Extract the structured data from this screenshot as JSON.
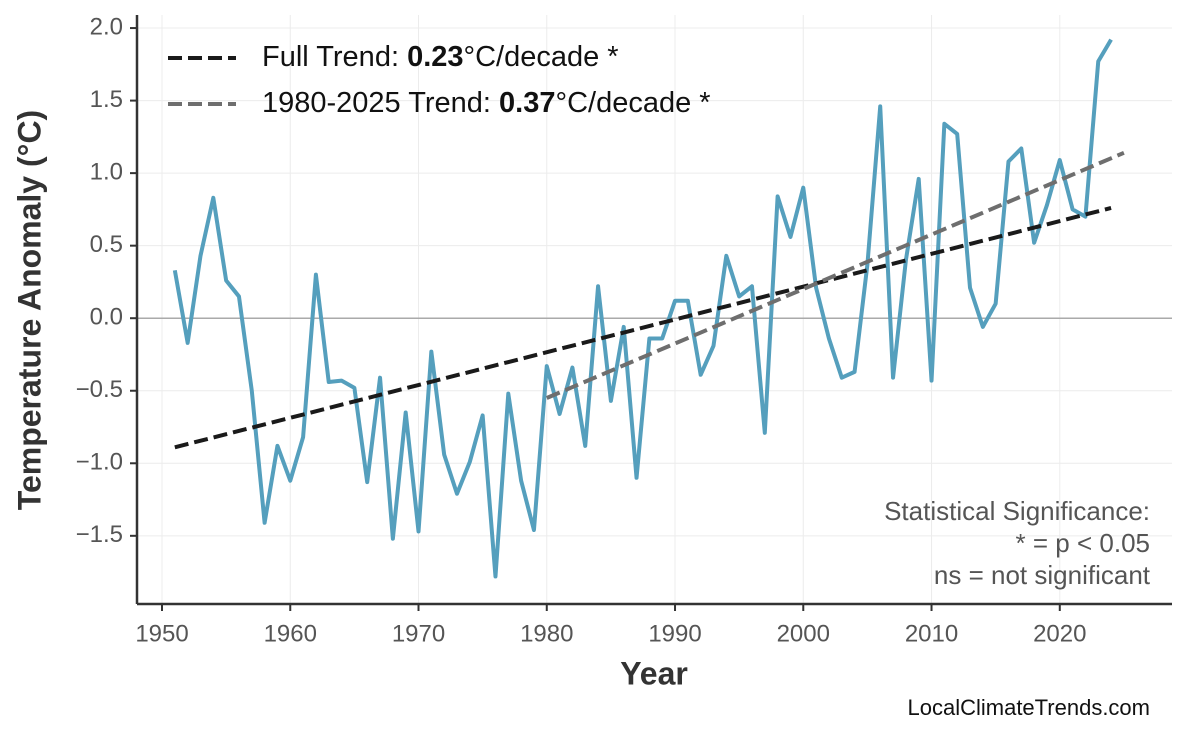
{
  "chart_data": {
    "type": "line",
    "xlabel": "Year",
    "ylabel": "Temperature Anomaly (°C)",
    "x": [
      1951,
      1952,
      1953,
      1954,
      1955,
      1956,
      1957,
      1958,
      1959,
      1960,
      1961,
      1962,
      1963,
      1964,
      1965,
      1966,
      1967,
      1968,
      1969,
      1970,
      1971,
      1972,
      1973,
      1974,
      1975,
      1976,
      1977,
      1978,
      1979,
      1980,
      1981,
      1982,
      1983,
      1984,
      1985,
      1986,
      1987,
      1988,
      1989,
      1990,
      1991,
      1992,
      1993,
      1994,
      1995,
      1996,
      1997,
      1998,
      1999,
      2000,
      2001,
      2002,
      2003,
      2004,
      2005,
      2006,
      2007,
      2008,
      2009,
      2010,
      2011,
      2012,
      2013,
      2014,
      2015,
      2016,
      2017,
      2018,
      2019,
      2020,
      2021,
      2022,
      2023,
      2024
    ],
    "series": [
      {
        "color": "#559fbd",
        "values": [
          0.33,
          -0.17,
          0.43,
          0.83,
          0.26,
          0.15,
          -0.5,
          -1.41,
          -0.88,
          -1.12,
          -0.82,
          0.3,
          -0.44,
          -0.43,
          -0.48,
          -1.13,
          -0.41,
          -1.52,
          -0.65,
          -1.47,
          -0.23,
          -0.94,
          -1.21,
          -0.99,
          -0.67,
          -1.78,
          -0.52,
          -1.12,
          -1.46,
          -0.33,
          -0.66,
          -0.34,
          -0.88,
          0.22,
          -0.57,
          -0.06,
          -1.1,
          -0.14,
          -0.14,
          0.12,
          0.12,
          -0.39,
          -0.19,
          0.43,
          0.15,
          0.22,
          -0.79,
          0.84,
          0.56,
          0.9,
          0.21,
          -0.14,
          -0.41,
          -0.37,
          0.37,
          1.46,
          -0.41,
          0.4,
          0.96,
          -0.43,
          1.34,
          1.27,
          0.21,
          -0.06,
          0.1,
          1.08,
          1.17,
          0.52,
          0.78,
          1.09,
          0.75,
          0.7,
          1.77,
          1.92
        ]
      }
    ],
    "trends": [
      {
        "prefix": "Full Trend: ",
        "rate": 0.23,
        "suffix": "°C/decade *",
        "color": "#1a1a1a",
        "x": [
          1951,
          2024
        ],
        "values": [
          -0.89,
          0.76
        ]
      },
      {
        "prefix": "1980-2025 Trend: ",
        "rate": 0.37,
        "suffix": "°C/decade *",
        "color": "#6e6e6e",
        "x": [
          1980,
          2025
        ],
        "values": [
          -0.55,
          1.14
        ]
      }
    ],
    "xlim": [
      1948.05,
      2028.75
    ],
    "ylim": [
      -1.97,
      2.09
    ],
    "xticks": [
      1950,
      1960,
      1970,
      1980,
      1990,
      2000,
      2010,
      2020
    ],
    "yticks": [
      {
        "value": -1.5,
        "label": "−1.5"
      },
      {
        "value": -1,
        "label": "−1.0"
      },
      {
        "value": -0.5,
        "label": "−0.5"
      },
      {
        "value": 0,
        "label": "0.0"
      },
      0.5,
      {
        "value": 1,
        "label": "1.0"
      },
      1.5,
      {
        "value": 2,
        "label": "2.0"
      }
    ],
    "grid": true,
    "annotation": [
      "Statistical Significance:",
      "* = p < 0.05",
      "ns = not significant"
    ],
    "source": "LocalClimateTrends.com"
  }
}
